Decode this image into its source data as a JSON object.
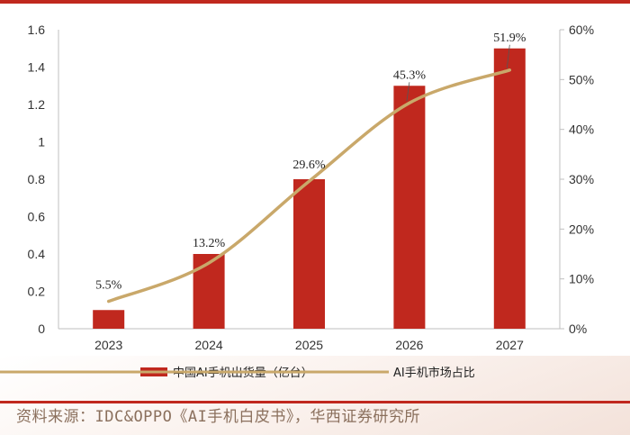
{
  "chart_data": {
    "type": "bar",
    "categories": [
      "2023",
      "2024",
      "2025",
      "2026",
      "2027"
    ],
    "series": [
      {
        "name": "中国AI手机出货量（亿台）",
        "type": "bar",
        "axis": "left",
        "color": "#c0281e",
        "values": [
          0.1,
          0.4,
          0.8,
          1.3,
          1.5
        ]
      },
      {
        "name": "AI手机市场占比",
        "type": "line",
        "axis": "right",
        "color": "#c9a86a",
        "values": [
          5.5,
          13.2,
          29.6,
          45.3,
          51.9
        ],
        "labels": [
          "5.5%",
          "13.2%",
          "29.6%",
          "45.3%",
          "51.9%"
        ]
      }
    ],
    "y_left": {
      "range": [
        0,
        1.6
      ],
      "ticks": [
        "0",
        "0.2",
        "0.4",
        "0.6",
        "0.8",
        "1",
        "1.2",
        "1.4",
        "1.6"
      ]
    },
    "y_right": {
      "range": [
        0,
        60
      ],
      "ticks": [
        "0%",
        "10%",
        "20%",
        "30%",
        "40%",
        "50%",
        "60%"
      ]
    },
    "grid": false,
    "legend_position": "bottom"
  },
  "source": "资料来源：IDC&OPPO《AI手机白皮书》，华西证券研究所"
}
